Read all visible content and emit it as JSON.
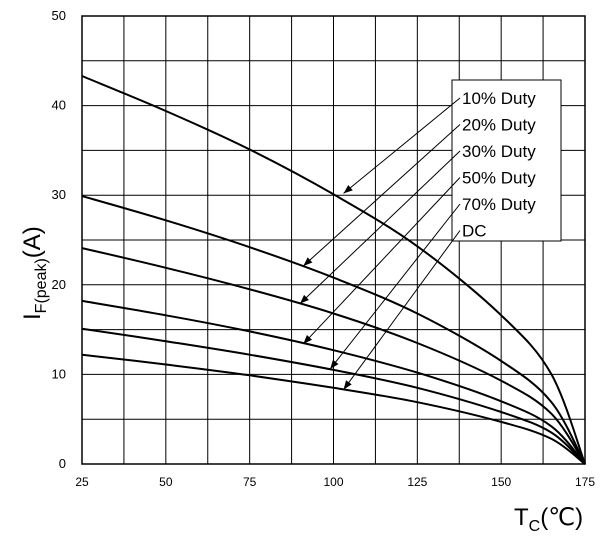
{
  "chart_data": {
    "type": "line",
    "title": "",
    "ylabel": {
      "main": "I",
      "sub": "F(peak)",
      "unit": "(A)"
    },
    "xlabel": {
      "main": "T",
      "sub": "C",
      "unit": "(℃)"
    },
    "xlim": [
      25,
      175
    ],
    "ylim": [
      0,
      50
    ],
    "x_ticks": [
      25,
      50,
      75,
      100,
      125,
      150,
      175
    ],
    "y_ticks": [
      0,
      10,
      20,
      30,
      40,
      50
    ],
    "grid": true,
    "legend_position": "top-right",
    "series": [
      {
        "name": "10% Duty",
        "x": [
          25,
          50,
          75,
          100,
          125,
          150,
          165,
          175
        ],
        "y": [
          43.3,
          39.4,
          35.1,
          30.1,
          24.3,
          16.6,
          10.0,
          0
        ]
      },
      {
        "name": "20% Duty",
        "x": [
          25,
          50,
          75,
          100,
          125,
          150,
          165,
          175
        ],
        "y": [
          29.9,
          27.2,
          24.2,
          20.8,
          16.8,
          11.5,
          6.9,
          0
        ]
      },
      {
        "name": "30% Duty",
        "x": [
          25,
          50,
          75,
          100,
          125,
          150,
          165,
          175
        ],
        "y": [
          24.1,
          21.9,
          19.5,
          16.8,
          13.5,
          9.3,
          5.6,
          0
        ]
      },
      {
        "name": "50% Duty",
        "x": [
          25,
          50,
          75,
          100,
          125,
          150,
          165,
          175
        ],
        "y": [
          18.2,
          16.6,
          14.8,
          12.7,
          10.2,
          7.0,
          4.2,
          0
        ]
      },
      {
        "name": "70% Duty",
        "x": [
          25,
          50,
          75,
          100,
          125,
          150,
          165,
          175
        ],
        "y": [
          15.1,
          13.7,
          12.2,
          10.5,
          8.5,
          5.8,
          3.5,
          0
        ]
      },
      {
        "name": "DC",
        "x": [
          25,
          50,
          75,
          100,
          125,
          150,
          165,
          175
        ],
        "y": [
          12.2,
          11.1,
          9.9,
          8.5,
          6.9,
          4.7,
          2.8,
          0
        ]
      }
    ],
    "annotation_targets": [
      {
        "series": "10% Duty",
        "x": 103,
        "y": 30.2
      },
      {
        "series": "20% Duty",
        "x": 91,
        "y": 22.1
      },
      {
        "series": "30% Duty",
        "x": 90,
        "y": 17.9
      },
      {
        "series": "50% Duty",
        "x": 91,
        "y": 13.4
      },
      {
        "series": "70% Duty",
        "x": 99,
        "y": 10.6
      },
      {
        "series": "DC",
        "x": 103,
        "y": 8.3
      }
    ],
    "colors": {
      "line": "#000000",
      "grid": "#000000",
      "legend_bg": "#ffffff"
    }
  }
}
